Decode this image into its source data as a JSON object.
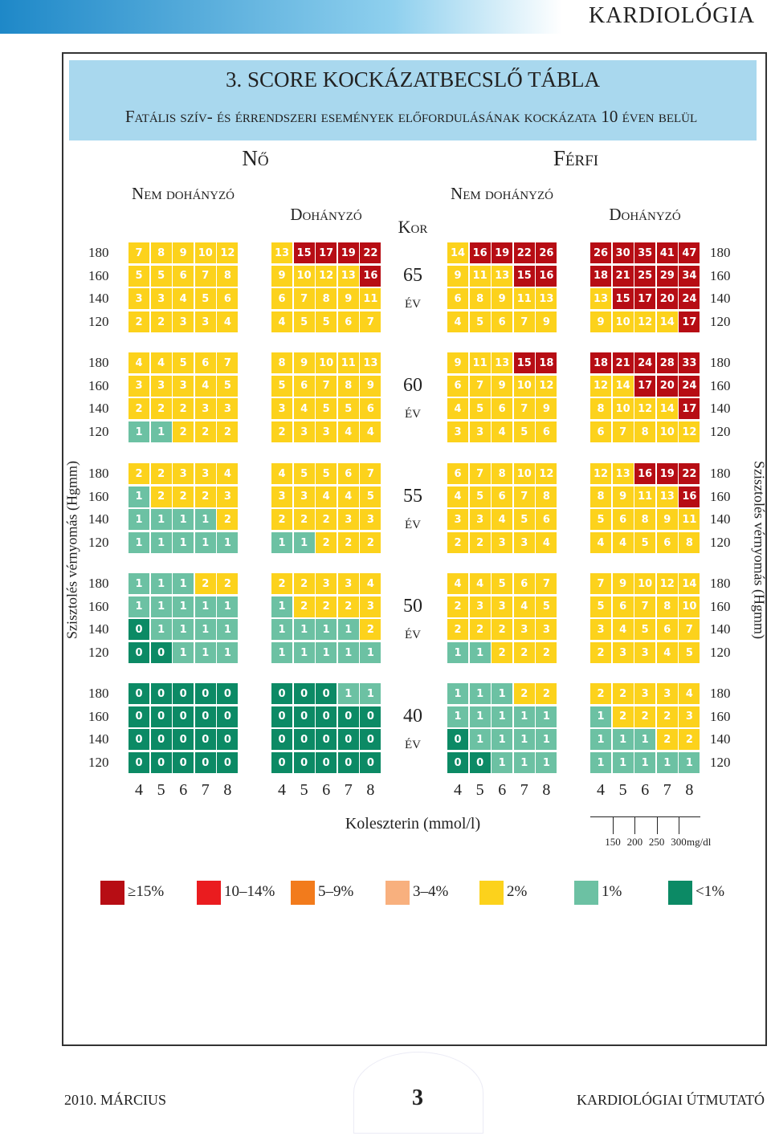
{
  "header": {
    "section": "KARDIOLÓGIA"
  },
  "title": "3. SCORE KOCKÁZATBECSLŐ TÁBLA",
  "subtitle": "Fatális szív- és érrendszeri események előfordulásának kockázata 10 éven belül",
  "genders": [
    "Nő",
    "Férfi"
  ],
  "groups": [
    "Nem dohányzó",
    "Dohányzó"
  ],
  "age_header": "Kor",
  "age_unit": "év",
  "bp_levels": [
    180,
    160,
    140,
    120
  ],
  "bp_axis_label": "Szisztolés vérnyomás (Hgmm)",
  "cholesterol_ticks": [
    4,
    5,
    6,
    7,
    8
  ],
  "cholesterol_label": "Koleszterin (mmol/l)",
  "mgdl_ticks": [
    150,
    200,
    250,
    300
  ],
  "mgdl_unit": "mg/dl",
  "blocks": [
    {
      "age": 65,
      "panels": [
        [
          [
            7,
            8,
            9,
            10,
            12
          ],
          [
            5,
            5,
            6,
            7,
            8
          ],
          [
            3,
            3,
            4,
            5,
            6
          ],
          [
            2,
            2,
            3,
            3,
            4
          ]
        ],
        [
          [
            13,
            15,
            17,
            19,
            22
          ],
          [
            9,
            10,
            12,
            13,
            16
          ],
          [
            6,
            7,
            8,
            9,
            11
          ],
          [
            4,
            5,
            5,
            6,
            7
          ]
        ],
        [
          [
            14,
            16,
            19,
            22,
            26
          ],
          [
            9,
            11,
            13,
            15,
            16
          ],
          [
            6,
            8,
            9,
            11,
            13
          ],
          [
            4,
            5,
            6,
            7,
            9
          ]
        ],
        [
          [
            26,
            30,
            35,
            41,
            47
          ],
          [
            18,
            21,
            25,
            29,
            34
          ],
          [
            13,
            15,
            17,
            20,
            24
          ],
          [
            9,
            10,
            12,
            14,
            17
          ]
        ]
      ]
    },
    {
      "age": 60,
      "panels": [
        [
          [
            4,
            4,
            5,
            6,
            7
          ],
          [
            3,
            3,
            3,
            4,
            5
          ],
          [
            2,
            2,
            2,
            3,
            3
          ],
          [
            1,
            1,
            2,
            2,
            2
          ]
        ],
        [
          [
            8,
            9,
            10,
            11,
            13
          ],
          [
            5,
            6,
            7,
            8,
            9
          ],
          [
            3,
            4,
            5,
            5,
            6
          ],
          [
            2,
            3,
            3,
            4,
            4
          ]
        ],
        [
          [
            9,
            11,
            13,
            15,
            18
          ],
          [
            6,
            7,
            9,
            10,
            12
          ],
          [
            4,
            5,
            6,
            7,
            9
          ],
          [
            3,
            3,
            4,
            5,
            6
          ]
        ],
        [
          [
            18,
            21,
            24,
            28,
            33
          ],
          [
            12,
            14,
            17,
            20,
            24
          ],
          [
            8,
            10,
            12,
            14,
            17
          ],
          [
            6,
            7,
            8,
            10,
            12
          ]
        ]
      ]
    },
    {
      "age": 55,
      "panels": [
        [
          [
            2,
            2,
            3,
            3,
            4
          ],
          [
            1,
            2,
            2,
            2,
            3
          ],
          [
            1,
            1,
            1,
            1,
            2
          ],
          [
            1,
            1,
            1,
            1,
            1
          ]
        ],
        [
          [
            4,
            5,
            5,
            6,
            7
          ],
          [
            3,
            3,
            4,
            4,
            5
          ],
          [
            2,
            2,
            2,
            3,
            3
          ],
          [
            1,
            1,
            2,
            2,
            2
          ]
        ],
        [
          [
            6,
            7,
            8,
            10,
            12
          ],
          [
            4,
            5,
            6,
            7,
            8
          ],
          [
            3,
            3,
            4,
            5,
            6
          ],
          [
            2,
            2,
            3,
            3,
            4
          ]
        ],
        [
          [
            12,
            13,
            16,
            19,
            22
          ],
          [
            8,
            9,
            11,
            13,
            16
          ],
          [
            5,
            6,
            8,
            9,
            11
          ],
          [
            4,
            4,
            5,
            6,
            8
          ]
        ]
      ]
    },
    {
      "age": 50,
      "panels": [
        [
          [
            1,
            1,
            1,
            2,
            2
          ],
          [
            1,
            1,
            1,
            1,
            1
          ],
          [
            0,
            1,
            1,
            1,
            1
          ],
          [
            0,
            0,
            1,
            1,
            1
          ]
        ],
        [
          [
            2,
            2,
            3,
            3,
            4
          ],
          [
            1,
            2,
            2,
            2,
            3
          ],
          [
            1,
            1,
            1,
            1,
            2
          ],
          [
            1,
            1,
            1,
            1,
            1
          ]
        ],
        [
          [
            4,
            4,
            5,
            6,
            7
          ],
          [
            2,
            3,
            3,
            4,
            5
          ],
          [
            2,
            2,
            2,
            3,
            3
          ],
          [
            1,
            1,
            2,
            2,
            2
          ]
        ],
        [
          [
            7,
            9,
            10,
            12,
            14
          ],
          [
            5,
            6,
            7,
            8,
            10
          ],
          [
            3,
            4,
            5,
            6,
            7
          ],
          [
            2,
            3,
            3,
            4,
            5
          ]
        ]
      ]
    },
    {
      "age": 40,
      "panels": [
        [
          [
            0,
            0,
            0,
            0,
            0
          ],
          [
            0,
            0,
            0,
            0,
            0
          ],
          [
            0,
            0,
            0,
            0,
            0
          ],
          [
            0,
            0,
            0,
            0,
            0
          ]
        ],
        [
          [
            0,
            0,
            0,
            1,
            1
          ],
          [
            0,
            0,
            0,
            0,
            0
          ],
          [
            0,
            0,
            0,
            0,
            0
          ],
          [
            0,
            0,
            0,
            0,
            0
          ]
        ],
        [
          [
            1,
            1,
            1,
            2,
            2
          ],
          [
            1,
            1,
            1,
            1,
            1
          ],
          [
            0,
            1,
            1,
            1,
            1
          ],
          [
            0,
            0,
            1,
            1,
            1
          ]
        ],
        [
          [
            2,
            2,
            3,
            3,
            4
          ],
          [
            1,
            2,
            2,
            2,
            3
          ],
          [
            1,
            1,
            1,
            2,
            2
          ],
          [
            1,
            1,
            1,
            1,
            1
          ]
        ]
      ]
    }
  ],
  "legend": [
    {
      "label": "≥15%",
      "color": "#b70d14"
    },
    {
      "label": "10–14%",
      "color": "#ea1c1f"
    },
    {
      "label": "5–9%",
      "color": "#f27b1c"
    },
    {
      "label": "3–4%",
      "color": "#f8b07e"
    },
    {
      "label": "2%",
      "color": "#fcd21c"
    },
    {
      "label": "1%",
      "color": "#6cc1a3"
    },
    {
      "label": "<1%",
      "color": "#0c8a65"
    }
  ],
  "footer": {
    "date": "2010. MÁRCIUS",
    "page": "3",
    "publication": "KARDIOLÓGIAI ÚTMUTATÓ"
  }
}
